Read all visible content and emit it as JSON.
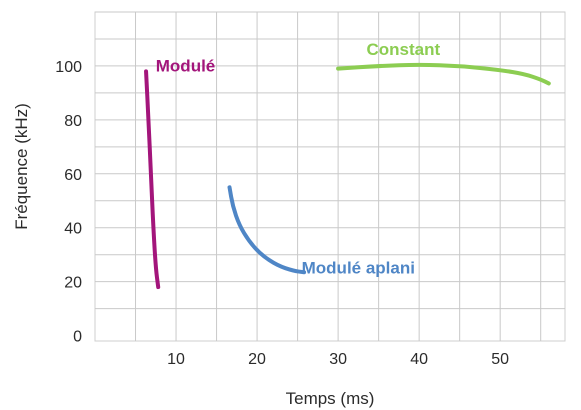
{
  "chart_data": {
    "type": "line",
    "xlabel": "Temps (ms)",
    "ylabel": "Fréquence (kHz)",
    "xlim": [
      0,
      58
    ],
    "ylim": [
      -2,
      120
    ],
    "x_ticks": [
      10,
      20,
      30,
      40,
      50
    ],
    "y_ticks": [
      0,
      20,
      40,
      60,
      80,
      100
    ],
    "grid": true,
    "grid_minor_x": 5,
    "grid_minor_y": 10,
    "series": [
      {
        "name": "Modulé",
        "color": "#a3157b",
        "label_at": [
          7.5,
          98
        ],
        "points": [
          [
            6.3,
            98
          ],
          [
            6.6,
            80
          ],
          [
            6.9,
            60
          ],
          [
            7.2,
            40
          ],
          [
            7.5,
            25
          ],
          [
            7.8,
            18
          ]
        ]
      },
      {
        "name": "Modulé aplani",
        "color": "#4f86c6",
        "label_at": [
          25.5,
          23
        ],
        "points": [
          [
            16.6,
            55
          ],
          [
            17.0,
            48
          ],
          [
            17.8,
            41
          ],
          [
            19.0,
            35
          ],
          [
            20.5,
            30
          ],
          [
            22.5,
            26
          ],
          [
            24.5,
            24
          ],
          [
            25.8,
            23.5
          ]
        ]
      },
      {
        "name": "Constant",
        "color": "#8ccd52",
        "label_at": [
          33.5,
          104
        ],
        "points": [
          [
            30,
            99
          ],
          [
            35,
            100
          ],
          [
            40,
            100.5
          ],
          [
            45,
            100
          ],
          [
            50,
            98.5
          ],
          [
            53,
            97
          ],
          [
            55,
            95
          ],
          [
            56,
            93.5
          ]
        ]
      }
    ]
  }
}
